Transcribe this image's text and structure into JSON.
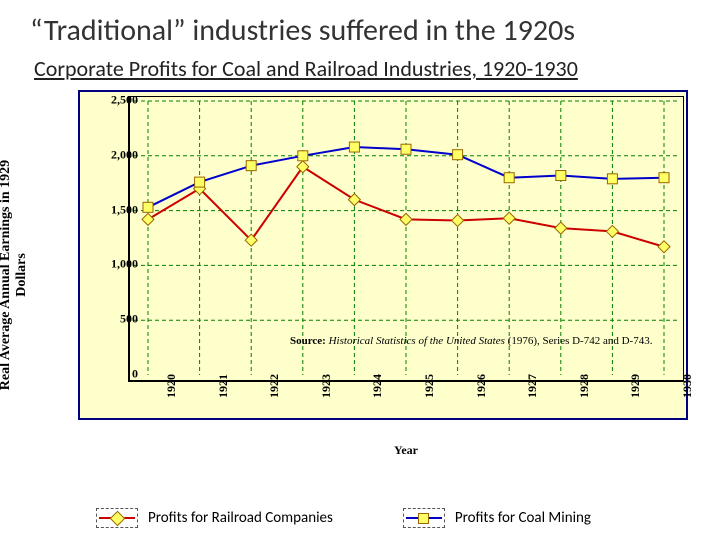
{
  "title": "“Traditional” industries suffered in the 1920s",
  "subtitle": "Corporate Profits for Coal and Railroad Industries, 1920-1930",
  "chart": {
    "type": "line",
    "background_color": "#ffffcc",
    "outer_border_color": "#000080",
    "grid_color": "#008000",
    "grid_dash": "4 3",
    "xaxis_label": "Year",
    "yaxis_label_line1": "Real Average Annual Earnings in 1929",
    "yaxis_label_line2": "Dollars",
    "years": [
      1920,
      1921,
      1922,
      1923,
      1924,
      1925,
      1926,
      1927,
      1928,
      1929,
      1930
    ],
    "ylim": [
      0,
      2500
    ],
    "ytick_step": 500,
    "yticks": [
      0,
      500,
      1000,
      1500,
      2000,
      2500
    ],
    "ytick_labels": [
      "0",
      "500",
      "1,000",
      "1,500",
      "2,000",
      "2,500"
    ],
    "series": {
      "railroad": {
        "label": "Profits for Railroad Companies",
        "color": "#cc0000",
        "marker_shape": "diamond",
        "marker_fill": "#ffff66",
        "marker_stroke": "#996600",
        "line_width": 2,
        "values": [
          1420,
          1700,
          1230,
          1900,
          1600,
          1420,
          1410,
          1430,
          1340,
          1310,
          1170
        ]
      },
      "coal": {
        "label": "Profits for Coal Mining",
        "color": "#0000cc",
        "marker_shape": "square",
        "marker_fill": "#ffff66",
        "marker_stroke": "#996600",
        "line_width": 2,
        "values": [
          1530,
          1760,
          1910,
          2000,
          2080,
          2060,
          2010,
          1800,
          1820,
          1790,
          1800
        ]
      }
    },
    "source_label": "Source:",
    "source_title": "Historical Statistics of the United States",
    "source_suffix": " (1976), Series D-742 and D-743."
  },
  "legend": {
    "item1": "Profits for Railroad Companies",
    "item2": "Profits for Coal Mining"
  }
}
